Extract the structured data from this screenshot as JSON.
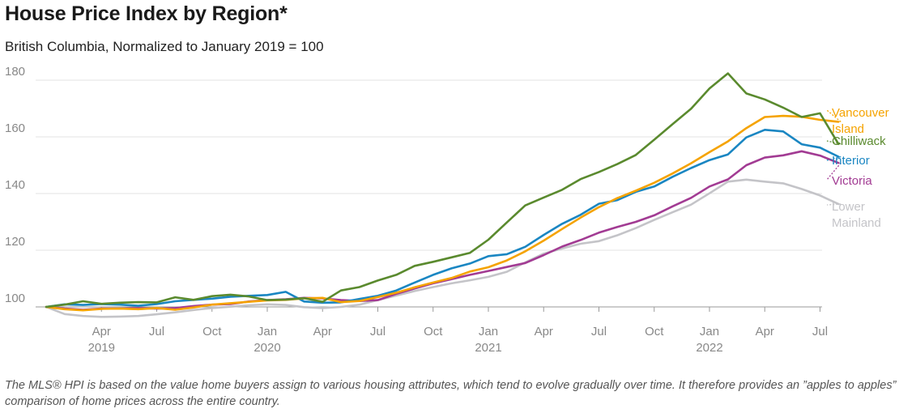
{
  "title": "House Price Index by Region*",
  "subtitle": "British Columbia, Normalized to January 2019 = 100",
  "note": "The MLS® HPI is based on the value home buyers assign to various housing attributes, which tend to evolve gradually over time. It therefore provides an ”apples to apples” comparison of home prices across the entire country.",
  "chart_data": {
    "type": "line",
    "title": "House Price Index by Region*",
    "subtitle": "British Columbia, Normalized to January 2019 = 100",
    "xlabel": "",
    "ylabel": "",
    "ylim": [
      100,
      180
    ],
    "yticks": [
      100,
      120,
      140,
      160,
      180
    ],
    "grid": true,
    "x_ticks": [
      {
        "i": 3,
        "label": "Apr",
        "year": "2019"
      },
      {
        "i": 6,
        "label": "Jul",
        "year": ""
      },
      {
        "i": 9,
        "label": "Oct",
        "year": ""
      },
      {
        "i": 12,
        "label": "Jan",
        "year": "2020"
      },
      {
        "i": 15,
        "label": "Apr",
        "year": ""
      },
      {
        "i": 18,
        "label": "Jul",
        "year": ""
      },
      {
        "i": 21,
        "label": "Oct",
        "year": ""
      },
      {
        "i": 24,
        "label": "Jan",
        "year": "2021"
      },
      {
        "i": 27,
        "label": "Apr",
        "year": ""
      },
      {
        "i": 30,
        "label": "Jul",
        "year": ""
      },
      {
        "i": 33,
        "label": "Oct",
        "year": ""
      },
      {
        "i": 36,
        "label": "Jan",
        "year": "2022"
      },
      {
        "i": 39,
        "label": "Apr",
        "year": ""
      },
      {
        "i": 42,
        "label": "Jul",
        "year": ""
      }
    ],
    "x": [
      "Jan 2019",
      "Feb 2019",
      "Mar 2019",
      "Apr 2019",
      "May 2019",
      "Jun 2019",
      "Jul 2019",
      "Aug 2019",
      "Sep 2019",
      "Oct 2019",
      "Nov 2019",
      "Dec 2019",
      "Jan 2020",
      "Feb 2020",
      "Mar 2020",
      "Apr 2020",
      "May 2020",
      "Jun 2020",
      "Jul 2020",
      "Aug 2020",
      "Sep 2020",
      "Oct 2020",
      "Nov 2020",
      "Dec 2020",
      "Jan 2021",
      "Feb 2021",
      "Mar 2021",
      "Apr 2021",
      "May 2021",
      "Jun 2021",
      "Jul 2021",
      "Aug 2021",
      "Sep 2021",
      "Oct 2021",
      "Nov 2021",
      "Dec 2021",
      "Jan 2022",
      "Feb 2022",
      "Mar 2022",
      "Apr 2022",
      "May 2022",
      "Jun 2022",
      "Jul 2022",
      "Aug 2022"
    ],
    "series": [
      {
        "name": "Lower Mainland",
        "label": [
          "Lower",
          "Mainland"
        ],
        "color": "#c4c4c8",
        "values": [
          100,
          97.5,
          96.8,
          96.5,
          96.6,
          96.8,
          97.4,
          98.1,
          98.9,
          99.6,
          100.1,
          100.6,
          100.9,
          100.7,
          99.9,
          99.6,
          100.0,
          100.8,
          102.4,
          104.0,
          105.6,
          107.0,
          108.3,
          109.4,
          110.6,
          112.4,
          115.7,
          118.8,
          120.6,
          122.3,
          123.2,
          125.3,
          127.8,
          130.7,
          133.4,
          136.1,
          140.1,
          144.2,
          144.9,
          144.2,
          143.6,
          141.6,
          139.3,
          136.3
        ]
      },
      {
        "name": "Victoria",
        "label": [
          "Victoria"
        ],
        "color": "#a23b93",
        "values": [
          100,
          99.4,
          99.0,
          99.4,
          99.4,
          99.6,
          99.4,
          99.6,
          100.3,
          100.8,
          101.0,
          101.9,
          102.4,
          102.7,
          103.2,
          103.0,
          102.4,
          102.1,
          102.4,
          104.6,
          106.5,
          108.3,
          109.8,
          111.3,
          112.7,
          114.1,
          115.5,
          118.3,
          121.3,
          123.6,
          126.2,
          128.2,
          130.0,
          132.3,
          135.5,
          138.5,
          142.5,
          145.0,
          150.0,
          152.7,
          153.5,
          154.9,
          153.4,
          150.8
        ]
      },
      {
        "name": "Interior",
        "label": [
          "Interior"
        ],
        "color": "#1a86c2",
        "values": [
          100,
          100.9,
          100.7,
          101.0,
          100.8,
          100.4,
          101.0,
          102.0,
          102.5,
          102.9,
          103.6,
          103.9,
          104.2,
          105.3,
          101.9,
          101.5,
          101.6,
          102.8,
          103.9,
          105.8,
          108.6,
          111.3,
          113.6,
          115.3,
          117.9,
          118.6,
          121.2,
          125.4,
          129.3,
          132.5,
          136.4,
          137.7,
          140.6,
          142.5,
          145.9,
          149.0,
          151.8,
          153.8,
          159.8,
          162.5,
          161.9,
          157.4,
          156.2,
          153.0
        ]
      },
      {
        "name": "Vancouver Island",
        "label": [
          "Vancouver",
          "Island"
        ],
        "color": "#f5a300",
        "values": [
          100,
          99.2,
          98.8,
          99.3,
          99.4,
          99.2,
          99.6,
          99.0,
          99.8,
          100.8,
          101.3,
          101.8,
          102.3,
          102.5,
          103.0,
          103.2,
          101.7,
          102.1,
          103.5,
          105.0,
          106.9,
          108.6,
          110.2,
          112.5,
          114.0,
          116.4,
          119.6,
          123.4,
          127.5,
          131.5,
          135.2,
          138.4,
          141.0,
          143.8,
          147.1,
          150.7,
          154.6,
          158.4,
          163.1,
          167.0,
          167.4,
          167.1,
          166.0,
          165.3
        ]
      },
      {
        "name": "Chilliwack",
        "label": [
          "Chilliwack"
        ],
        "color": "#5a8a2e",
        "values": [
          100,
          100.8,
          102.0,
          101.1,
          101.5,
          101.7,
          101.6,
          103.4,
          102.5,
          103.8,
          104.3,
          103.7,
          102.4,
          102.6,
          103.1,
          101.8,
          105.8,
          107.0,
          109.3,
          111.3,
          114.5,
          115.9,
          117.5,
          119.1,
          123.7,
          129.8,
          135.8,
          138.6,
          141.3,
          145.1,
          147.6,
          150.4,
          153.6,
          159.0,
          164.5,
          169.9,
          177.1,
          182.4,
          175.3,
          173.2,
          170.3,
          167.0,
          168.3,
          157.5
        ]
      }
    ]
  }
}
